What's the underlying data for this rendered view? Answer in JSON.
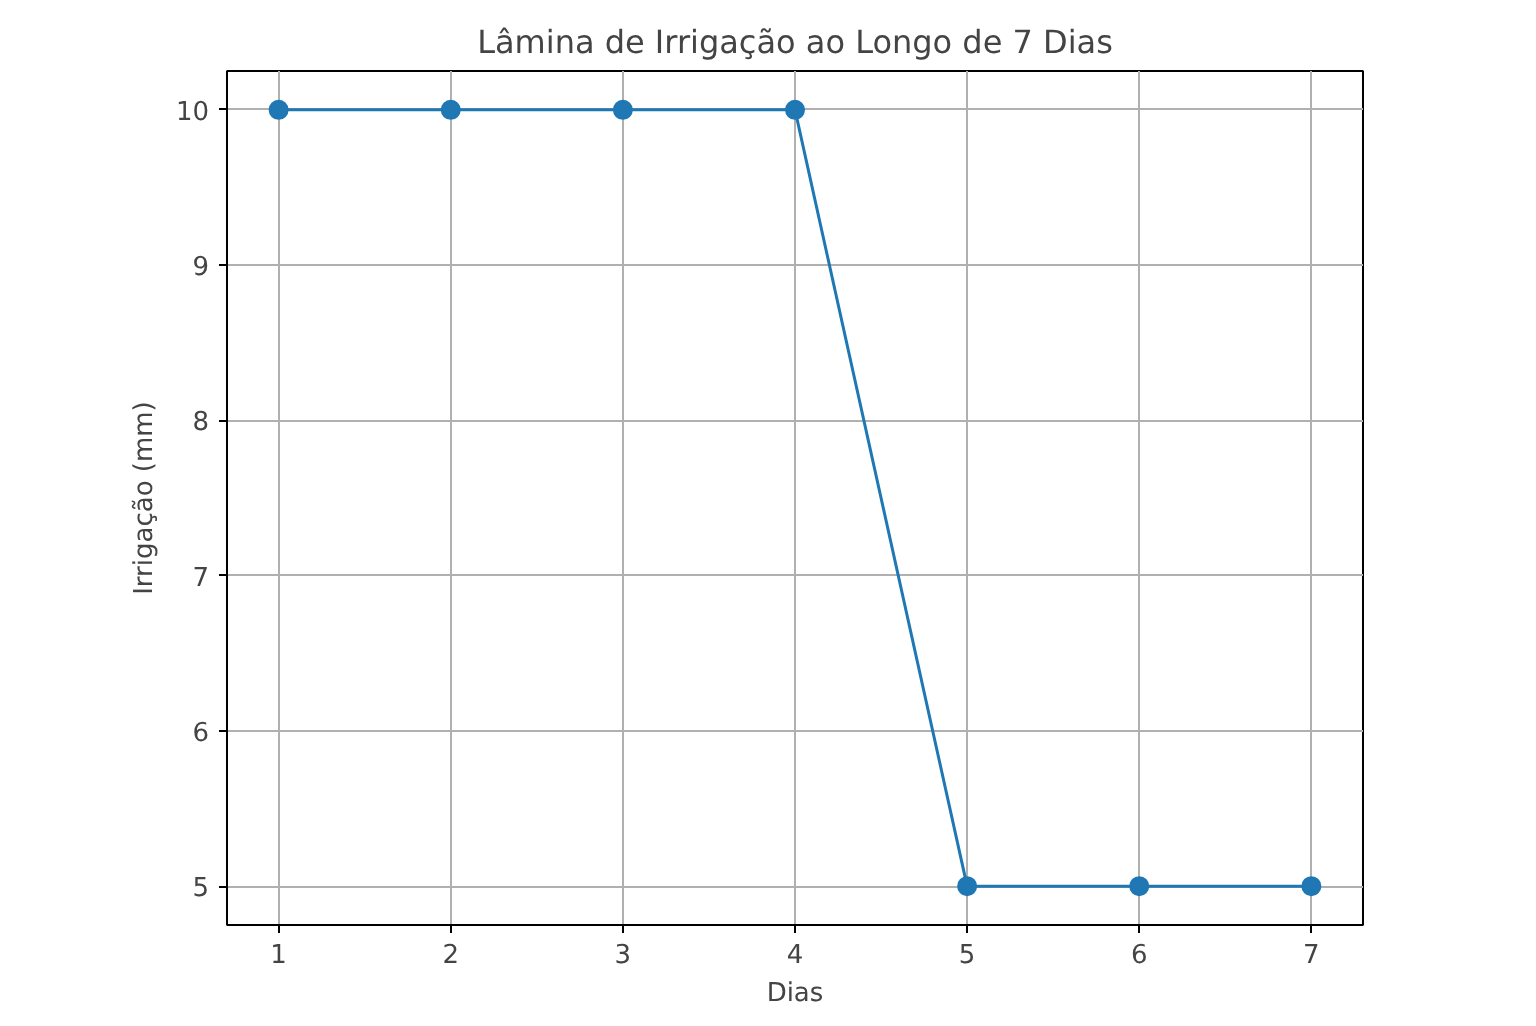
{
  "chart_data": {
    "type": "line",
    "title": "Lâmina de Irrigação ao Longo de 7 Dias",
    "xlabel": "Dias",
    "ylabel": "Irrigação (mm)",
    "x": [
      1,
      2,
      3,
      4,
      5,
      6,
      7
    ],
    "series": [
      {
        "color": "#1f77b4",
        "values": [
          10,
          10,
          10,
          10,
          5,
          5,
          5
        ]
      }
    ],
    "xlim": [
      0.7,
      7.3
    ],
    "ylim": [
      4.75,
      10.25
    ],
    "xticks": [
      1,
      2,
      3,
      4,
      5,
      6,
      7
    ],
    "yticks": [
      5,
      6,
      7,
      8,
      9,
      10
    ],
    "grid": true,
    "marker": "circle",
    "line_style": "solid"
  }
}
